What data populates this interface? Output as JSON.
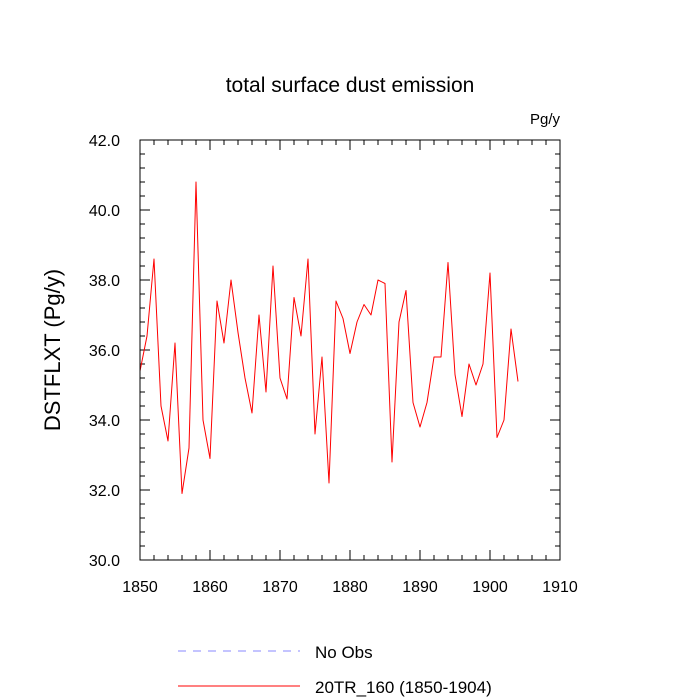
{
  "chart_data": {
    "type": "line",
    "title": "total surface dust emission",
    "units": "Pg/y",
    "xlabel": "",
    "ylabel": "DSTFLXT  (Pg/y)",
    "xlim": [
      1850,
      1910
    ],
    "ylim": [
      30,
      42
    ],
    "xticks": [
      1850,
      1860,
      1870,
      1880,
      1890,
      1900,
      1910
    ],
    "xtick_labels": [
      "1850",
      "1860",
      "1870",
      "1880",
      "1890",
      "1900",
      "1910"
    ],
    "yticks": [
      30,
      32,
      34,
      36,
      38,
      40,
      42
    ],
    "ytick_labels": [
      "30.0",
      "32.0",
      "34.0",
      "36.0",
      "38.0",
      "40.0",
      "42.0"
    ],
    "legend_position": "bottom",
    "series": [
      {
        "name": "20TR_160 (1850-1904)",
        "color": "#ff0000",
        "dash": "solid",
        "x": [
          1850,
          1851,
          1852,
          1853,
          1854,
          1855,
          1856,
          1857,
          1858,
          1859,
          1860,
          1861,
          1862,
          1863,
          1864,
          1865,
          1866,
          1867,
          1868,
          1869,
          1870,
          1871,
          1872,
          1873,
          1874,
          1875,
          1876,
          1877,
          1878,
          1879,
          1880,
          1881,
          1882,
          1883,
          1884,
          1885,
          1886,
          1887,
          1888,
          1889,
          1890,
          1891,
          1892,
          1893,
          1894,
          1895,
          1896,
          1897,
          1898,
          1899,
          1900,
          1901,
          1902,
          1903,
          1904
        ],
        "y": [
          35.4,
          36.4,
          38.6,
          34.4,
          33.4,
          36.2,
          31.9,
          33.2,
          40.8,
          34.0,
          32.9,
          37.4,
          36.2,
          38.0,
          36.5,
          35.2,
          34.2,
          37.0,
          34.8,
          38.4,
          35.2,
          34.6,
          37.5,
          36.4,
          38.6,
          33.6,
          35.8,
          32.2,
          37.4,
          36.9,
          35.9,
          36.8,
          37.3,
          37.0,
          38.0,
          37.9,
          32.8,
          36.8,
          37.7,
          34.5,
          33.8,
          34.5,
          35.8,
          35.8,
          38.5,
          35.3,
          34.1,
          35.6,
          35.0,
          35.6,
          38.2,
          33.5,
          34.0,
          36.6,
          35.1
        ]
      },
      {
        "name": "No Obs",
        "color": "#8888ff",
        "dash": "dashed",
        "x": [],
        "y": []
      }
    ]
  }
}
